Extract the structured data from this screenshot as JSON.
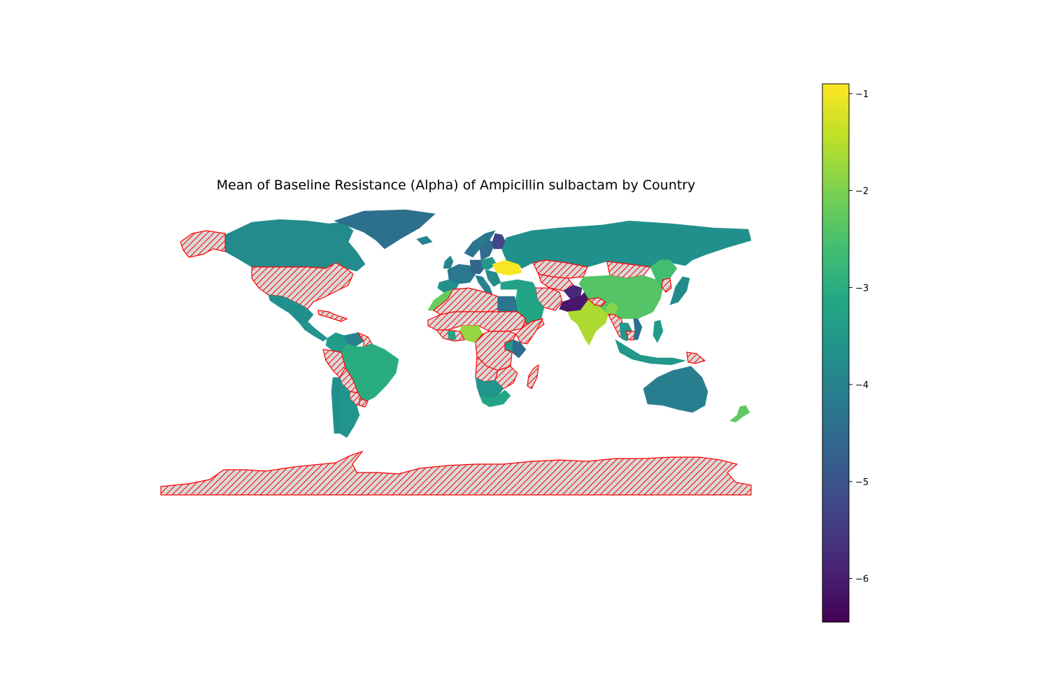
{
  "chart_data": {
    "type": "choropleth",
    "title": "Mean of Baseline Resistance (Alpha) of Ampicillin sulbactam by Country",
    "colormap": "viridis",
    "missing_style": {
      "fill": "#d9d9d9",
      "edge": "#ff0000",
      "hatch": "////"
    },
    "colorbar": {
      "range": [
        -6.45,
        -0.9
      ],
      "ticks": [
        -1,
        -2,
        -3,
        -4,
        -5,
        -6
      ],
      "tick_labels": [
        "−1",
        "−2",
        "−3",
        "−4",
        "−5",
        "−6"
      ]
    },
    "regions": [
      {
        "name": "Canada",
        "value": -3.8
      },
      {
        "name": "Alaska",
        "value": null
      },
      {
        "name": "United States",
        "value": null
      },
      {
        "name": "Mexico",
        "value": -3.7
      },
      {
        "name": "Caribbean",
        "value": null
      },
      {
        "name": "Central America",
        "value": -3.6
      },
      {
        "name": "Colombia",
        "value": -3.4
      },
      {
        "name": "Venezuela",
        "value": -4.0
      },
      {
        "name": "Guyana",
        "value": null
      },
      {
        "name": "Brazil",
        "value": -3.0
      },
      {
        "name": "Peru",
        "value": null
      },
      {
        "name": "Bolivia",
        "value": null
      },
      {
        "name": "Paraguay",
        "value": null
      },
      {
        "name": "Argentina",
        "value": -3.6
      },
      {
        "name": "Chile",
        "value": -3.7
      },
      {
        "name": "Uruguay",
        "value": null
      },
      {
        "name": "Greenland",
        "value": -4.4
      },
      {
        "name": "Iceland",
        "value": -4.0
      },
      {
        "name": "Norway",
        "value": -4.3
      },
      {
        "name": "Sweden",
        "value": -4.5
      },
      {
        "name": "Finland",
        "value": -5.3
      },
      {
        "name": "United Kingdom",
        "value": -3.9
      },
      {
        "name": "Western Europe",
        "value": -4.2
      },
      {
        "name": "Spain",
        "value": -3.7
      },
      {
        "name": "Germany",
        "value": -4.6
      },
      {
        "name": "Poland",
        "value": -3.5
      },
      {
        "name": "Ukraine",
        "value": -0.95
      },
      {
        "name": "Italy",
        "value": -4.0
      },
      {
        "name": "Balkans",
        "value": -3.8
      },
      {
        "name": "Turkey",
        "value": -3.3
      },
      {
        "name": "Russia",
        "value": -3.7
      },
      {
        "name": "Kazakhstan",
        "value": null
      },
      {
        "name": "Mongolia",
        "value": null
      },
      {
        "name": "Central Asia",
        "value": null
      },
      {
        "name": "Iran",
        "value": null
      },
      {
        "name": "Pakistan",
        "value": -6.1
      },
      {
        "name": "Afghanistan",
        "value": -5.8
      },
      {
        "name": "Saudi Arabia",
        "value": -3.2
      },
      {
        "name": "Yemen",
        "value": null
      },
      {
        "name": "China",
        "value": -2.4
      },
      {
        "name": "Manchuria",
        "value": -2.6
      },
      {
        "name": "North Korea",
        "value": null
      },
      {
        "name": "Japan",
        "value": -3.8
      },
      {
        "name": "India",
        "value": -1.6
      },
      {
        "name": "Nepal",
        "value": null
      },
      {
        "name": "Bangladesh",
        "value": -1.9
      },
      {
        "name": "Myanmar",
        "value": null
      },
      {
        "name": "Thailand",
        "value": -3.5
      },
      {
        "name": "Cambodia",
        "value": null
      },
      {
        "name": "Vietnam",
        "value": -4.4
      },
      {
        "name": "Philippines",
        "value": -3.4
      },
      {
        "name": "Indonesia",
        "value": -3.5
      },
      {
        "name": "Papua New Guinea",
        "value": null
      },
      {
        "name": "Australia",
        "value": -4.1
      },
      {
        "name": "New Zealand",
        "value": -2.3
      },
      {
        "name": "Morocco",
        "value": -2.2
      },
      {
        "name": "North Africa",
        "value": null
      },
      {
        "name": "Egypt",
        "value": -4.3
      },
      {
        "name": "Sahel",
        "value": null
      },
      {
        "name": "Nigeria",
        "value": -1.8
      },
      {
        "name": "West Africa",
        "value": null
      },
      {
        "name": "Ghana",
        "value": -3.3
      },
      {
        "name": "Horn of Africa",
        "value": null
      },
      {
        "name": "Kenya",
        "value": -4.5
      },
      {
        "name": "Uganda",
        "value": -3.5
      },
      {
        "name": "Central Africa",
        "value": null
      },
      {
        "name": "Angola",
        "value": null
      },
      {
        "name": "Zambia",
        "value": null
      },
      {
        "name": "Southern Africa",
        "value": -3.6
      },
      {
        "name": "South Africa",
        "value": -3.2
      },
      {
        "name": "Madagascar",
        "value": null
      },
      {
        "name": "Antarctica",
        "value": null
      }
    ]
  }
}
